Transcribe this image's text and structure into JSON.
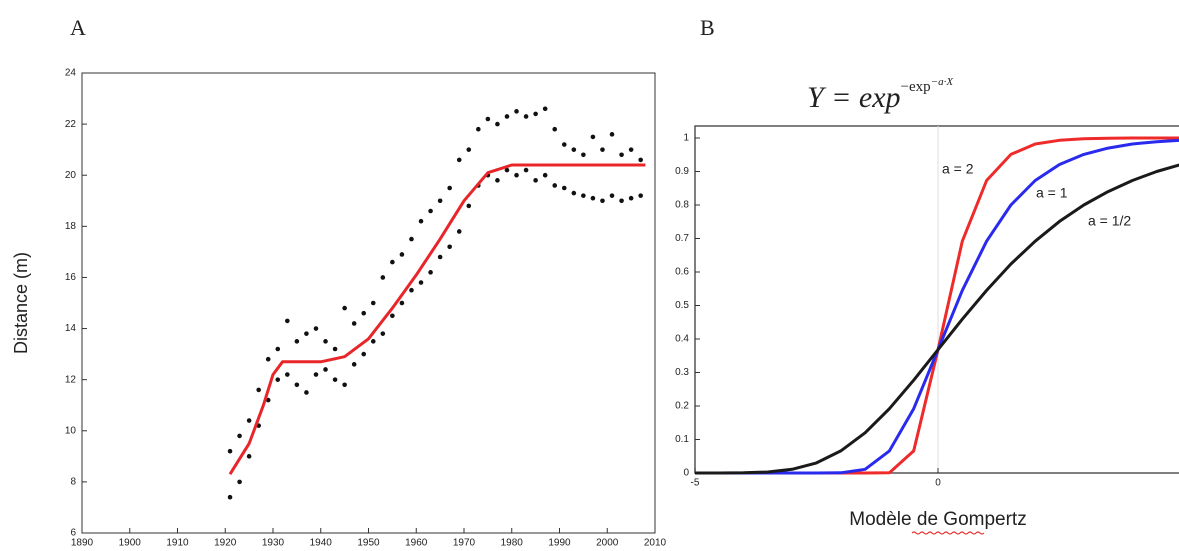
{
  "chart_data": [
    {
      "type": "scatter",
      "label": "A",
      "ylabel": "Distance (m)",
      "xlim": [
        1890,
        2010
      ],
      "xticks": [
        1890,
        1900,
        1910,
        1920,
        1930,
        1940,
        1950,
        1960,
        1970,
        1980,
        1990,
        2000,
        2010
      ],
      "ylim": [
        6,
        24
      ],
      "yticks": [
        6,
        8,
        10,
        12,
        14,
        16,
        18,
        20,
        22,
        24
      ],
      "series": [
        {
          "type": "scatter",
          "color": "#111111",
          "x": [
            1921,
            1921,
            1923,
            1923,
            1925,
            1925,
            1927,
            1927,
            1929,
            1929,
            1931,
            1931,
            1933,
            1933,
            1935,
            1935,
            1937,
            1937,
            1939,
            1939,
            1941,
            1941,
            1943,
            1943,
            1945,
            1945,
            1947,
            1947,
            1949,
            1949,
            1951,
            1951,
            1953,
            1953,
            1955,
            1955,
            1957,
            1957,
            1959,
            1959,
            1961,
            1961,
            1963,
            1963,
            1965,
            1965,
            1967,
            1967,
            1969,
            1969,
            1971,
            1971,
            1973,
            1973,
            1975,
            1975,
            1977,
            1977,
            1979,
            1979,
            1981,
            1981,
            1983,
            1983,
            1985,
            1985,
            1987,
            1987,
            1989,
            1989,
            1991,
            1991,
            1993,
            1993,
            1995,
            1995,
            1997,
            1997,
            1999,
            1999,
            2001,
            2001,
            2003,
            2003,
            2005,
            2005,
            2007,
            2007
          ],
          "values": [
            7.4,
            9.2,
            8.0,
            9.8,
            9.0,
            10.4,
            10.2,
            11.6,
            11.2,
            12.8,
            12.0,
            13.2,
            12.2,
            14.3,
            11.8,
            13.5,
            11.5,
            13.8,
            12.2,
            14.0,
            12.4,
            13.5,
            12.0,
            13.2,
            11.8,
            14.8,
            12.6,
            14.2,
            13.0,
            14.6,
            13.5,
            15.0,
            13.8,
            16.0,
            14.5,
            16.6,
            15.0,
            16.9,
            15.5,
            17.5,
            15.8,
            18.2,
            16.2,
            18.6,
            16.8,
            19.0,
            17.2,
            19.5,
            17.8,
            20.6,
            18.8,
            21.0,
            19.6,
            21.8,
            20.0,
            22.2,
            19.8,
            22.0,
            20.2,
            22.3,
            20.0,
            22.5,
            20.2,
            22.3,
            19.8,
            22.4,
            20.0,
            22.6,
            19.6,
            21.8,
            19.5,
            21.2,
            19.3,
            21.0,
            19.2,
            20.8,
            19.1,
            21.5,
            19.0,
            21.0,
            19.2,
            21.6,
            19.0,
            20.8,
            19.1,
            21.0,
            19.2,
            20.6
          ]
        },
        {
          "type": "line",
          "color": "#e8262a",
          "x": [
            1921,
            1925,
            1928,
            1930,
            1932,
            1935,
            1940,
            1945,
            1950,
            1955,
            1960,
            1965,
            1970,
            1975,
            1980,
            1985,
            1990,
            1995,
            2000,
            2005,
            2008
          ],
          "values": [
            8.3,
            9.5,
            11.0,
            12.2,
            12.7,
            12.7,
            12.7,
            12.9,
            13.6,
            14.8,
            16.1,
            17.5,
            19.0,
            20.1,
            20.4,
            20.4,
            20.4,
            20.4,
            20.4,
            20.4,
            20.4
          ]
        }
      ]
    },
    {
      "type": "line",
      "label": "B",
      "title": [
        "Y = exp",
        "−exp",
        "−a·X"
      ],
      "xlabel": "Modèle de Gompertz",
      "xlim": [
        -5,
        5
      ],
      "xticks": [
        -5,
        0
      ],
      "ylim": [
        0,
        1
      ],
      "yticks": [
        0,
        0.1,
        0.2,
        0.3,
        0.4,
        0.5,
        0.6,
        0.7,
        0.8,
        0.9,
        1
      ],
      "x": [
        -5,
        -4.5,
        -4,
        -3.5,
        -3,
        -2.5,
        -2,
        -1.5,
        -1,
        -0.5,
        0,
        0.5,
        1,
        1.5,
        2,
        2.5,
        3,
        3.5,
        4,
        4.5,
        5
      ],
      "series": [
        {
          "name": "a = 2",
          "color": "#ee2a2a",
          "values": [
            0,
            0,
            0,
            0,
            0,
            0,
            0,
            0,
            0.0006,
            0.066,
            0.368,
            0.692,
            0.873,
            0.951,
            0.982,
            0.993,
            0.998,
            0.999,
            1,
            1,
            1
          ]
        },
        {
          "name": "a = 1",
          "color": "#2a2aee",
          "values": [
            0,
            0,
            0,
            0,
            0,
            0,
            0.0006,
            0.011,
            0.066,
            0.192,
            0.368,
            0.545,
            0.692,
            0.8,
            0.873,
            0.921,
            0.951,
            0.97,
            0.982,
            0.989,
            0.993
          ]
        },
        {
          "name": "a = 1/2",
          "color": "#1a1a1a",
          "values": [
            0,
            0.0001,
            0.0006,
            0.003,
            0.011,
            0.03,
            0.066,
            0.12,
            0.192,
            0.277,
            0.368,
            0.459,
            0.545,
            0.624,
            0.692,
            0.751,
            0.8,
            0.84,
            0.873,
            0.9,
            0.921
          ]
        }
      ]
    }
  ]
}
